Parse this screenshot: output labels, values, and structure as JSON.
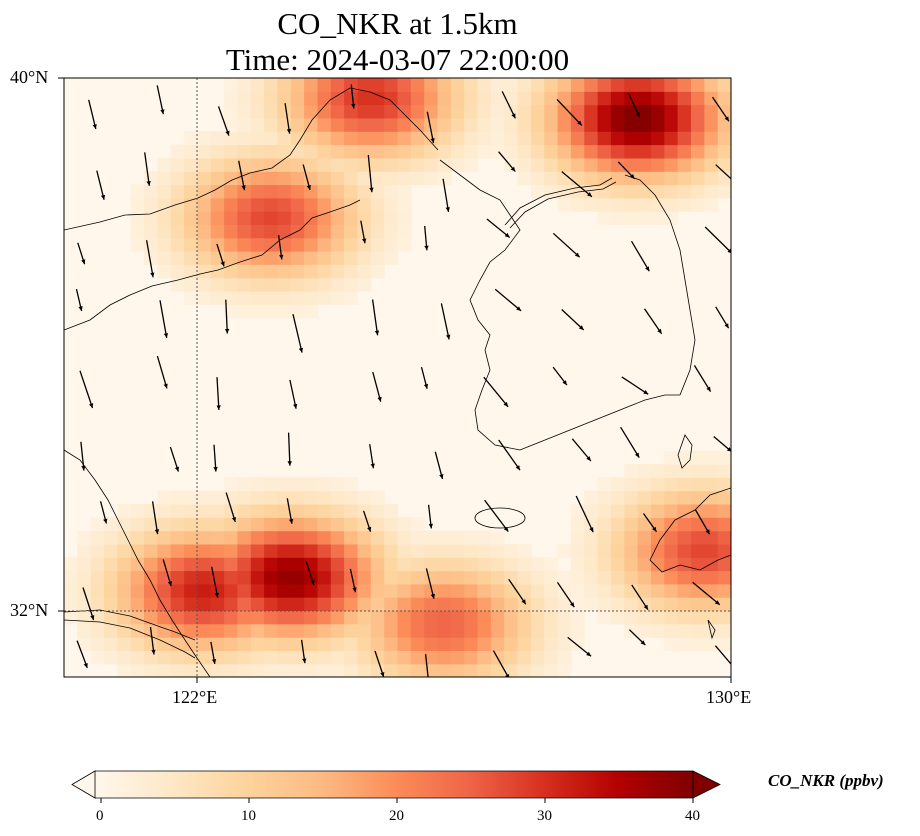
{
  "title": {
    "line1": "CO_NKR at 1.5km",
    "line2": "Time: 2024-03-07 22:00:00"
  },
  "map": {
    "lon_range": [
      120,
      130
    ],
    "lat_range": [
      31,
      40
    ],
    "lat_ticks": [
      "40°N",
      "32°N"
    ],
    "lon_ticks": [
      "122°E",
      "130°E"
    ],
    "gridline_lon": 122,
    "gridline_lat": 32,
    "variable": "CO_NKR",
    "level": "1.5km",
    "field_note": "Gridded concentration shaded with OrRd-like colormap; wind vectors overlaid",
    "hotspots": [
      {
        "lon": 124.5,
        "lat": 39.6,
        "value": 30
      },
      {
        "lon": 128.5,
        "lat": 39.3,
        "value": 40
      },
      {
        "lon": 123.0,
        "lat": 37.8,
        "value": 28
      },
      {
        "lon": 123.3,
        "lat": 32.4,
        "value": 38
      },
      {
        "lon": 122.0,
        "lat": 32.2,
        "value": 32
      },
      {
        "lon": 129.5,
        "lat": 32.8,
        "value": 28
      },
      {
        "lon": 125.6,
        "lat": 31.7,
        "value": 25
      }
    ]
  },
  "colorbar": {
    "label": "CO_NKR (ppbv)",
    "min": 0,
    "max": 40,
    "ticks": [
      "0",
      "10",
      "20",
      "30",
      "40"
    ],
    "colors": [
      "#fff7ec",
      "#fee8c8",
      "#fdd49e",
      "#fdbb84",
      "#fc8d59",
      "#ef6548",
      "#d7301f",
      "#b30000",
      "#7f0000"
    ]
  }
}
